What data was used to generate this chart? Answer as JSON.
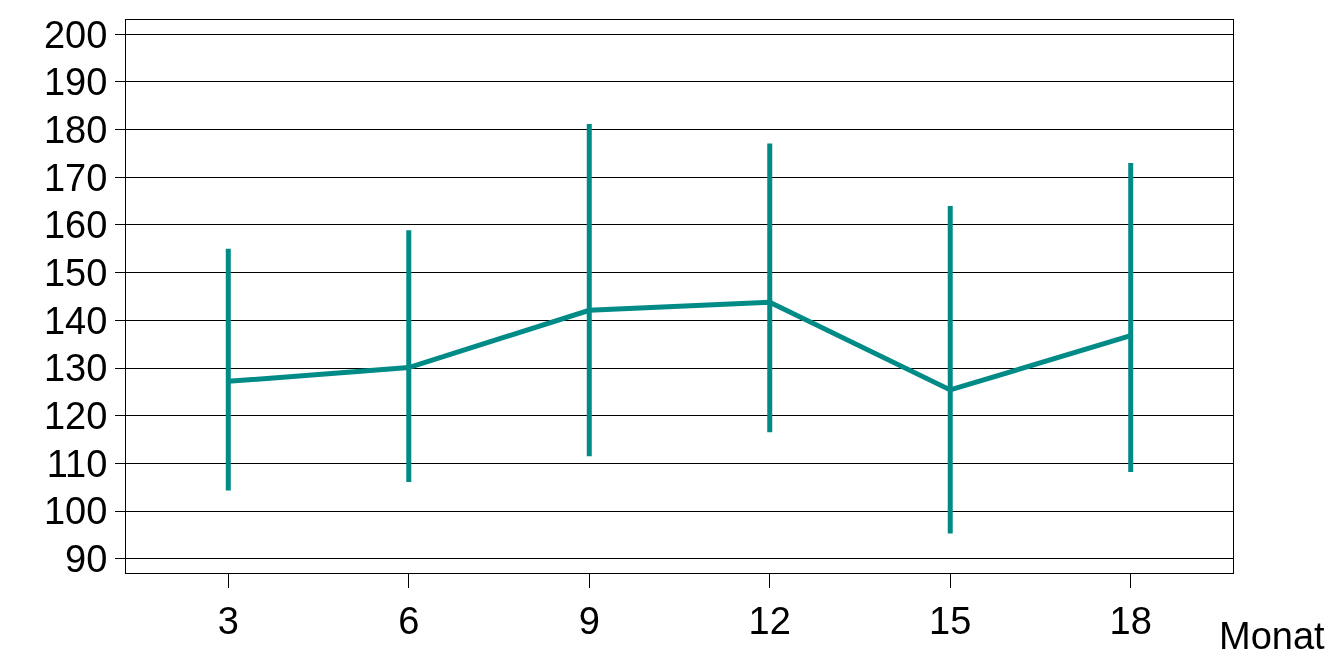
{
  "chart_data": {
    "type": "line",
    "xlabel": "Monat",
    "x": [
      3,
      6,
      9,
      12,
      15,
      18
    ],
    "series": [
      {
        "color": "#008b87",
        "values": [
          127.2,
          130.1,
          142.1,
          143.8,
          125.4,
          136.8
        ],
        "errors": [
          [
            104.3,
            155.0
          ],
          [
            106.1,
            158.9
          ],
          [
            111.5,
            181.2
          ],
          [
            116.5,
            177.1
          ],
          [
            95.3,
            164.0
          ],
          [
            108.2,
            173.0
          ]
        ]
      }
    ],
    "xlim": [
      1.3,
      19.7
    ],
    "xticks": [
      3,
      6,
      9,
      12,
      15,
      18
    ],
    "ylim": [
      87,
      203
    ],
    "yticks": [
      90,
      100,
      110,
      120,
      130,
      140,
      150,
      160,
      170,
      180,
      190,
      200
    ],
    "grid": "y",
    "marker": "none",
    "line_style": "solid"
  }
}
